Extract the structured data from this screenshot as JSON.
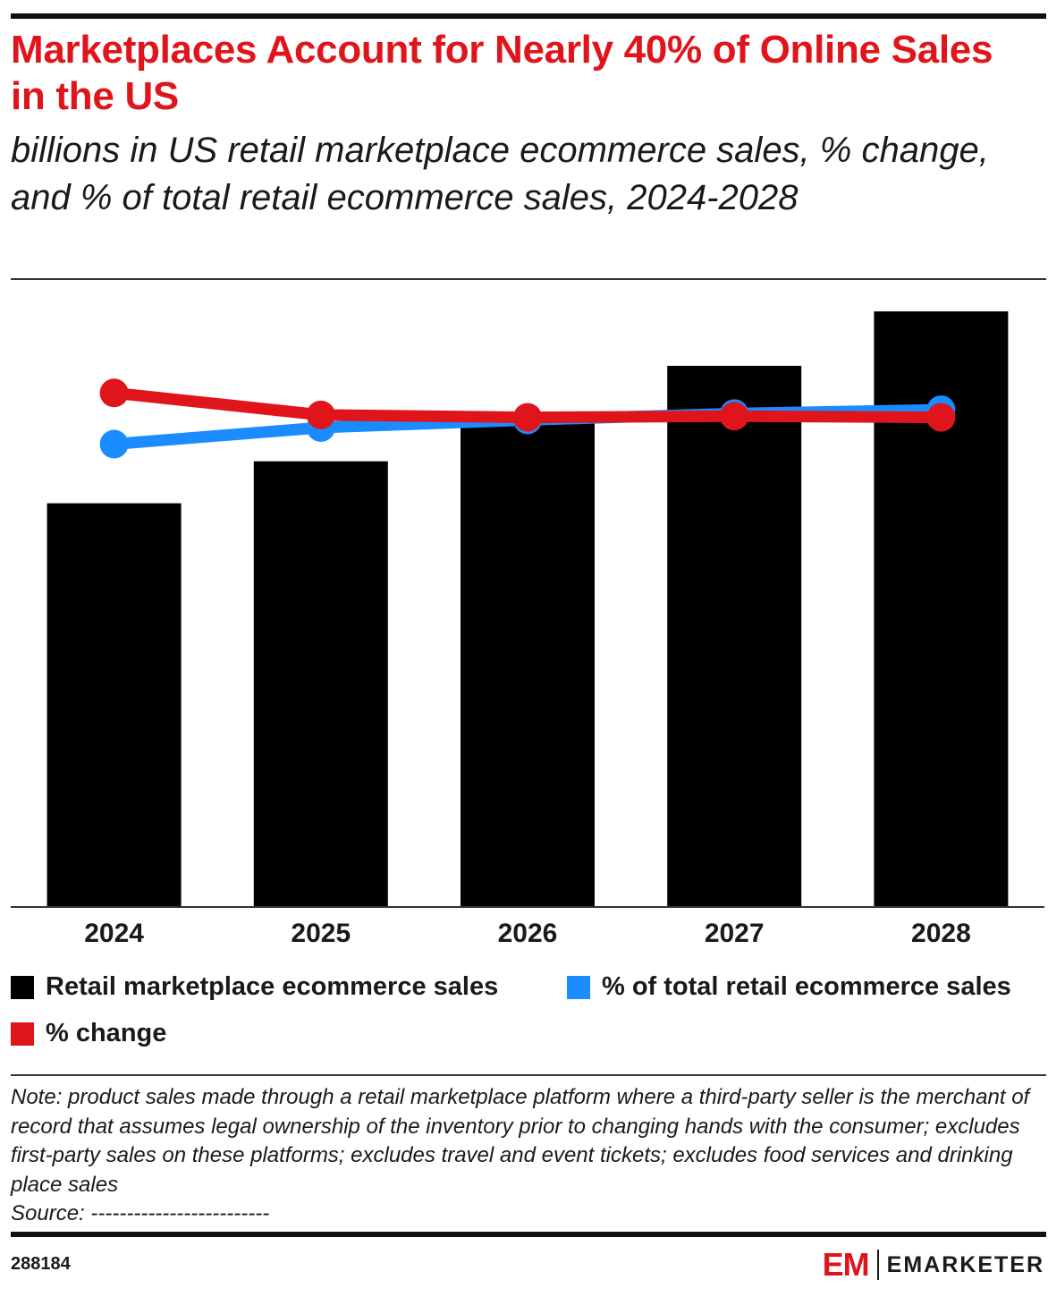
{
  "header": {
    "title": "Marketplaces Account for Nearly 40% of Online Sales in the US",
    "subtitle": "billions in US retail marketplace ecommerce sales, % change, and % of total retail ecommerce sales, 2024-2028"
  },
  "chart_data": {
    "type": "bar",
    "title": "Marketplaces Account for Nearly 40% of Online Sales in the US",
    "subtitle": "billions in US retail marketplace ecommerce sales, % change, and % of total retail ecommerce sales, 2024-2028",
    "xlabel": "",
    "ylabel": "",
    "categories": [
      "2024",
      "2025",
      "2026",
      "2027",
      "2028"
    ],
    "series": [
      {
        "name": "Retail marketplace ecommerce sales",
        "kind": "bar",
        "color": "#000000",
        "values": [
          422,
          466,
          513,
          566,
          623
        ]
      },
      {
        "name": "% of total retail ecommerce sales",
        "kind": "line",
        "color": "#1a8cff",
        "values": [
          36.3,
          37.6,
          38.2,
          38.7,
          39.0
        ]
      },
      {
        "name": "% change",
        "kind": "line",
        "color": "#e0151c",
        "values": [
          12.0,
          10.2,
          10.0,
          10.1,
          10.0
        ]
      }
    ],
    "ylim_bar": [
      0,
      640
    ],
    "ylim_share": [
      0,
      48
    ],
    "ylim_change": [
      -30,
      20
    ],
    "grid": false,
    "legend_position": "bottom"
  },
  "legend": {
    "items": [
      {
        "label": "Retail marketplace ecommerce sales",
        "color": "#000000"
      },
      {
        "label": "% of total retail ecommerce sales",
        "color": "#1a8cff"
      },
      {
        "label": "% change",
        "color": "#e0151c"
      }
    ]
  },
  "footer": {
    "note": "Note: product sales made through a retail marketplace platform where a third-party seller is the merchant of record that assumes legal ownership of the inventory prior to changing hands with the consumer; excludes first-party sales on these platforms; excludes travel and event tickets; excludes food services and drinking place sales",
    "source": "Source: -------------------------",
    "chart_id": "288184",
    "brand_mark": "EM",
    "brand_name": "EMARKETER"
  }
}
